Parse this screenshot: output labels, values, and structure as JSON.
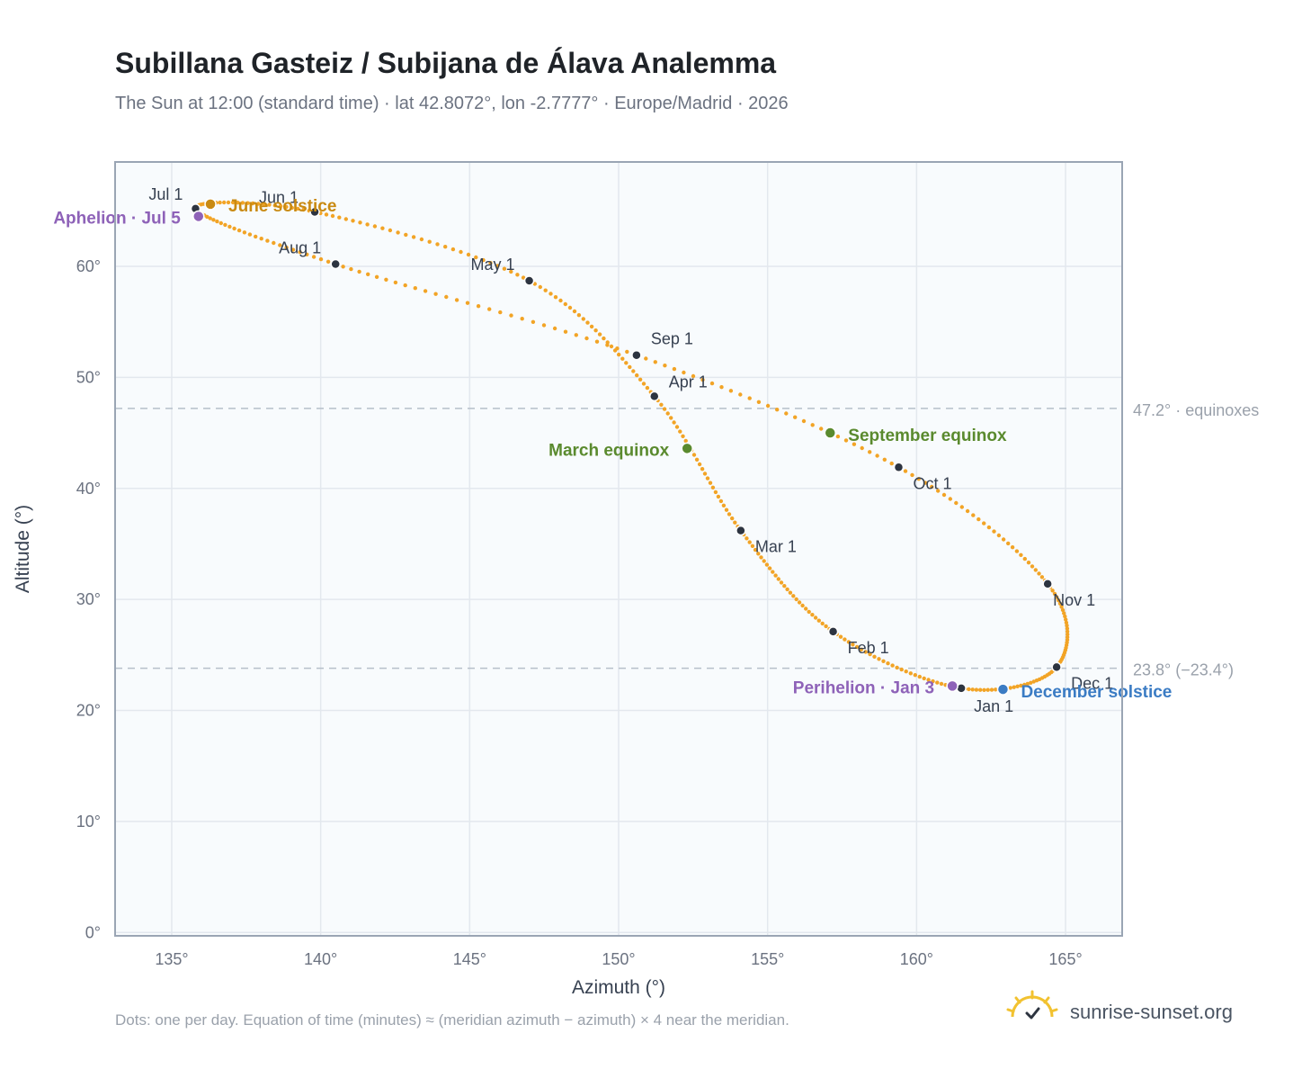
{
  "header": {
    "title": "Subillana Gasteiz / Subijana de Álava Analemma",
    "subtitle": "The Sun at 12:00 (standard time) · lat 42.8072°, lon -2.7777° · Europe/Madrid · 2026"
  },
  "footer": {
    "note": "Dots: one per day. Equation of time (minutes) ≈ (meridian azimuth − azimuth) × 4 near the meridian.",
    "brand": "sunrise-sunset.org",
    "brand_icon": "sun-check-icon"
  },
  "colors": {
    "curve": "#f2a426",
    "month_dot": "#2d3440",
    "aphelion_perihelion": "#8e62b8",
    "june_solstice": "#c98a12",
    "december_solstice": "#3b7cc4",
    "equinox": "#5a8a2e",
    "plot_bg": "#f8fbfd",
    "grid": "#e3e8ee",
    "frame": "#9aa5b4",
    "ref_line": "#b6c0ca"
  },
  "chart_data": {
    "type": "scatter",
    "title": "Subillana Gasteiz / Subijana de Álava Analemma",
    "xlabel": "Azimuth (°)",
    "ylabel": "Altitude (°)",
    "xlim": [
      133.1,
      166.9
    ],
    "ylim": [
      -0.3,
      69.4
    ],
    "x_ticks": [
      135,
      140,
      145,
      150,
      155,
      160,
      165
    ],
    "x_tick_labels": [
      "135°",
      "140°",
      "145°",
      "150°",
      "155°",
      "160°",
      "165°"
    ],
    "y_ticks": [
      0,
      10,
      20,
      30,
      40,
      50,
      60
    ],
    "y_tick_labels": [
      "0°",
      "10°",
      "20°",
      "30°",
      "40°",
      "50°",
      "60°"
    ],
    "grid": true,
    "series_path_monthly": [
      {
        "date": "Jan 1",
        "az": 161.5,
        "alt": 22.0
      },
      {
        "date": "Feb 1",
        "az": 157.2,
        "alt": 27.1
      },
      {
        "date": "Mar 1",
        "az": 154.1,
        "alt": 36.2
      },
      {
        "date": "Apr 1",
        "az": 151.2,
        "alt": 48.3
      },
      {
        "date": "May 1",
        "az": 147.0,
        "alt": 58.7
      },
      {
        "date": "Jun 1",
        "az": 139.8,
        "alt": 64.9
      },
      {
        "date": "Jul 1",
        "az": 135.8,
        "alt": 65.2
      },
      {
        "date": "Aug 1",
        "az": 140.5,
        "alt": 60.2
      },
      {
        "date": "Sep 1",
        "az": 150.6,
        "alt": 52.0
      },
      {
        "date": "Oct 1",
        "az": 159.4,
        "alt": 41.9
      },
      {
        "date": "Nov 1",
        "az": 164.4,
        "alt": 31.4
      },
      {
        "date": "Dec 1",
        "az": 164.7,
        "alt": 23.9
      }
    ],
    "month_labels": [
      "Jan 1",
      "Feb 1",
      "Mar 1",
      "Apr 1",
      "May 1",
      "Jun 1",
      "Jul 1",
      "Aug 1",
      "Sep 1",
      "Oct 1",
      "Nov 1",
      "Dec 1"
    ],
    "special_points": [
      {
        "label": "June solstice",
        "az": 136.3,
        "alt": 65.6
      },
      {
        "label": "December solstice",
        "az": 162.9,
        "alt": 21.9
      },
      {
        "label": "March equinox",
        "az": 152.3,
        "alt": 43.6
      },
      {
        "label": "September equinox",
        "az": 157.1,
        "alt": 45.0
      },
      {
        "label": "Aphelion · Jul 5",
        "az": 135.9,
        "alt": 64.5
      },
      {
        "label": "Perihelion · Jan 3",
        "az": 161.2,
        "alt": 22.2
      }
    ],
    "reference_lines": [
      {
        "alt": 47.2,
        "label": "47.2° · equinoxes"
      },
      {
        "alt": 23.8,
        "label": "23.8° (−23.4°)"
      }
    ]
  }
}
